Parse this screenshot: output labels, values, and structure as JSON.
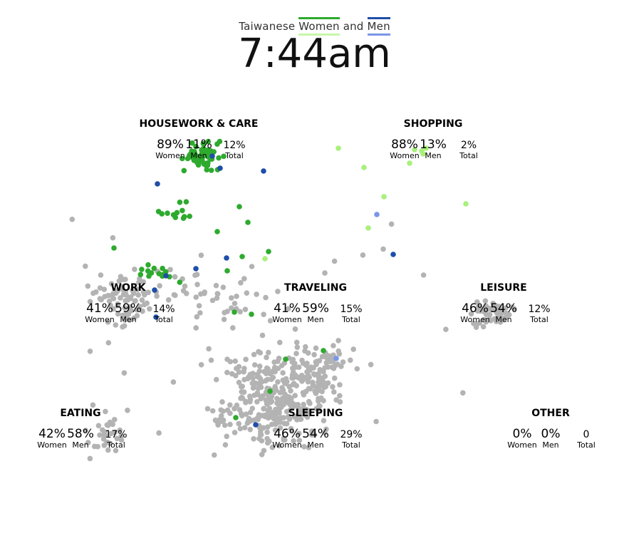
{
  "header": {
    "prefix": "Taiwanese",
    "women_label": "Women",
    "and_label": "and",
    "men_label": "Men",
    "time": "7:44am"
  },
  "colors": {
    "women_dark": "#2eaa2e",
    "women_light": "#a8f07a",
    "men_dark": "#1f4ea8",
    "men_light": "#7a96e8",
    "idle": "#b3b3b3"
  },
  "labels": {
    "women": "Women",
    "men": "Men",
    "total": "Total"
  },
  "chart_data": {
    "type": "scatter",
    "title": "7:44am",
    "categories": [
      {
        "name": "HOUSEWORK & CARE",
        "women_pct": "89%",
        "men_pct": "11%",
        "total": "12%"
      },
      {
        "name": "SHOPPING",
        "women_pct": "88%",
        "men_pct": "13%",
        "total": "2%"
      },
      {
        "name": "WORK",
        "women_pct": "41%",
        "men_pct": "59%",
        "total": "14%"
      },
      {
        "name": "TRAVELING",
        "women_pct": "41%",
        "men_pct": "59%",
        "total": "15%"
      },
      {
        "name": "LEISURE",
        "women_pct": "46%",
        "men_pct": "54%",
        "total": "12%"
      },
      {
        "name": "EATING",
        "women_pct": "42%",
        "men_pct": "58%",
        "total": "17%"
      },
      {
        "name": "SLEEPING",
        "women_pct": "46%",
        "men_pct": "54%",
        "total": "29%"
      },
      {
        "name": "OTHER",
        "women_pct": "0%",
        "men_pct": "0%",
        "total": "0"
      }
    ]
  }
}
